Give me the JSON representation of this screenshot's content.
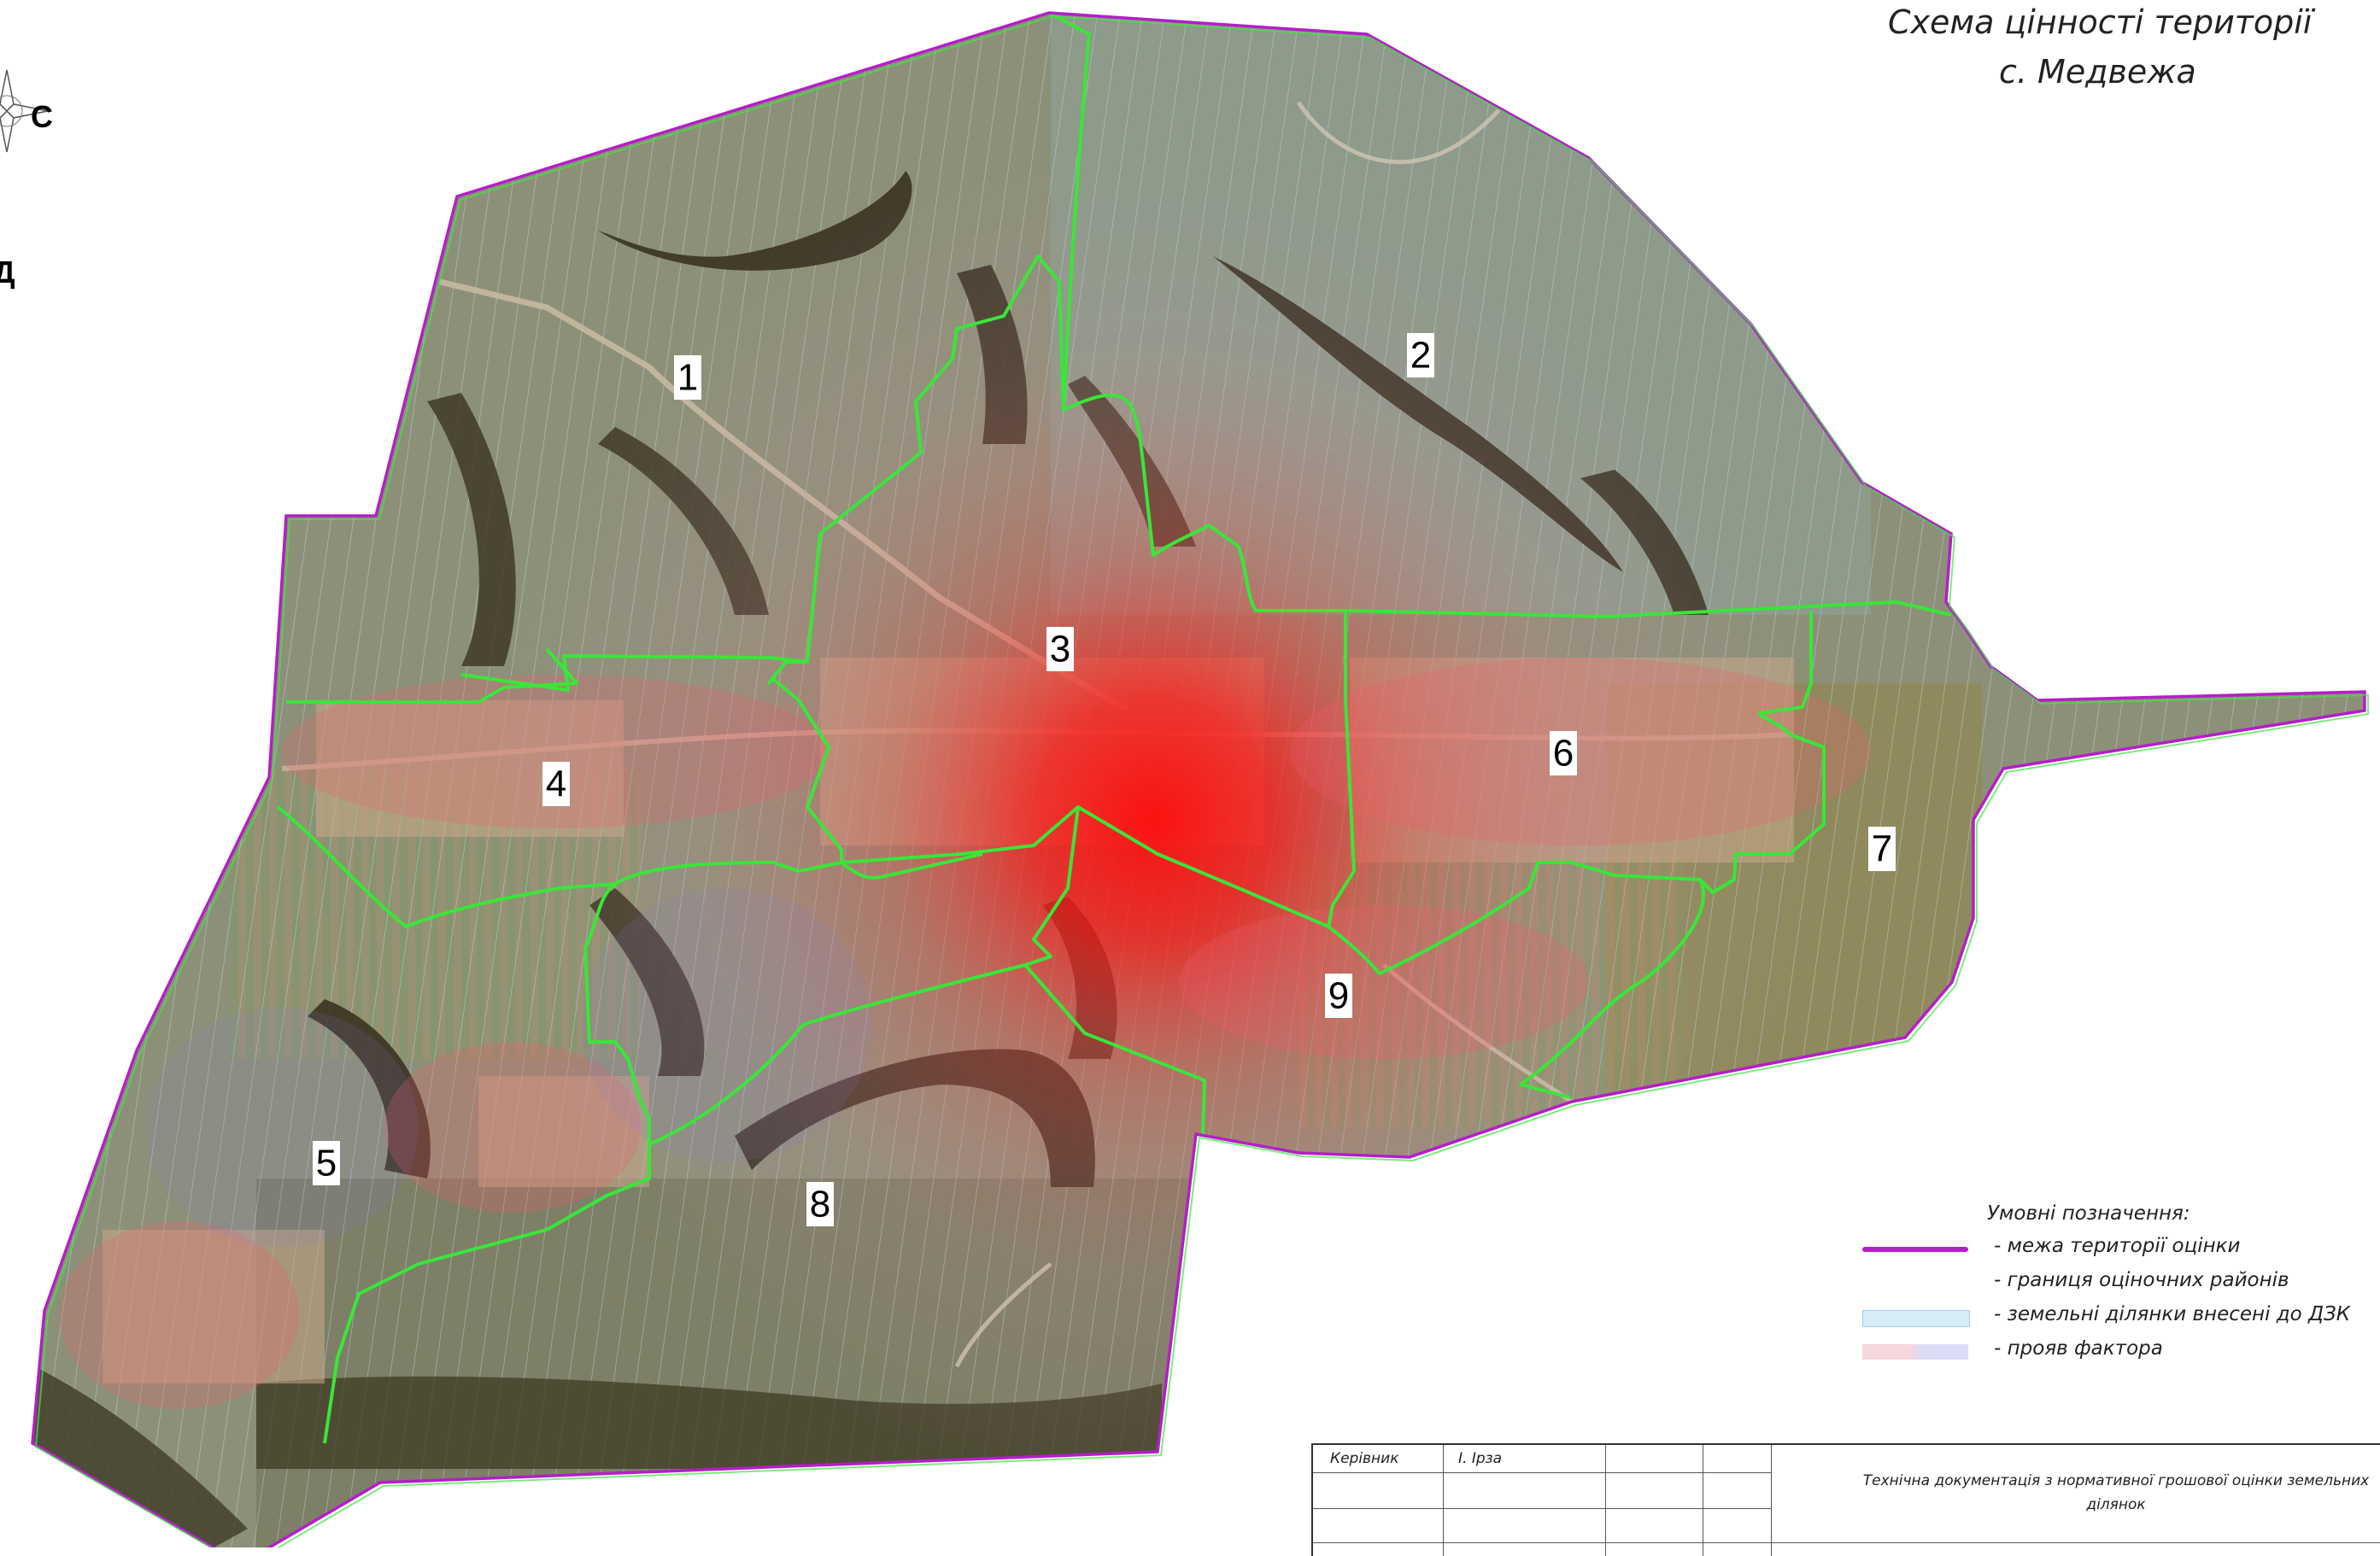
{
  "title": {
    "line1": "Схема цінності території",
    "line2": "с. Медвежа"
  },
  "compass": {
    "north_label": "С",
    "west_label": "Д"
  },
  "regions": [
    {
      "label": "1"
    },
    {
      "label": "2"
    },
    {
      "label": "3"
    },
    {
      "label": "4"
    },
    {
      "label": "5"
    },
    {
      "label": "6"
    },
    {
      "label": "7"
    },
    {
      "label": "8"
    },
    {
      "label": "9"
    }
  ],
  "legend": {
    "heading": "Умовні позначення:",
    "items": [
      {
        "label": "- межа території оцінки",
        "color": "#b41ec8",
        "kind": "line"
      },
      {
        "label": "- границя оціночних районів",
        "color": "#3ee83e",
        "kind": "line-faint"
      },
      {
        "label": "- земельні ділянки внесені до ДЗК",
        "color": "#d6ecf7",
        "kind": "fill"
      },
      {
        "label": "- прояв фактора",
        "color_a": "#f7d6dd",
        "color_b": "#dcdcf6",
        "kind": "gradient"
      }
    ]
  },
  "stamp": {
    "role": "Керівник",
    "name": "І. Ірза",
    "description": "Технічна документація з нормативної грошової оцінки земельних ділянок"
  },
  "colors": {
    "boundary": "#b41ec8",
    "district_border": "#39e639",
    "heat_center": "#ff1a1a",
    "field": "#8b8f79",
    "forest": "#3c3322"
  }
}
